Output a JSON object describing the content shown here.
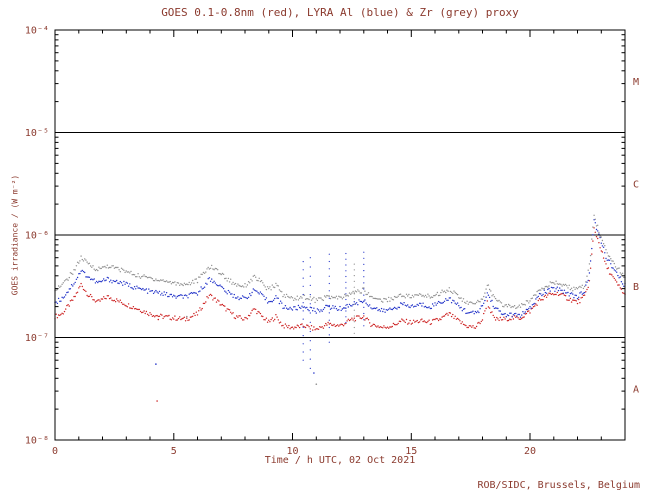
{
  "title": "GOES 0.1-0.8nm (red), LYRA Al (blue) & Zr (grey) proxy",
  "credit": "ROB/SIDC, Brussels, Belgium",
  "colors": {
    "text": "#8b3a2e",
    "axis": "#000000",
    "goes": "#cc2020",
    "al": "#2233c8",
    "zr": "#909090"
  },
  "chart_data": {
    "type": "line",
    "title": "GOES 0.1-0.8nm (red), LYRA Al (blue) & Zr (grey) proxy",
    "xlabel": "Time / h UTC, 02 Oct 2021",
    "ylabel": "GOES irradiance / (W m⁻²)",
    "xlim": [
      0,
      24
    ],
    "ylim": [
      1e-08,
      0.0001
    ],
    "grid": false,
    "x_major_ticks": [
      0,
      5,
      10,
      15,
      20
    ],
    "y_tick_values": [
      0.0001,
      1e-05,
      1e-06,
      1e-07,
      1e-08
    ],
    "y_tick_labels": [
      "10⁻⁴",
      "10⁻⁵",
      "10⁻⁶",
      "10⁻⁷",
      "10⁻⁸"
    ],
    "hlines": [
      1e-05,
      1e-06,
      1e-07
    ],
    "flare_class_labels": [
      {
        "label": "M",
        "y": 3.16e-05
      },
      {
        "label": "C",
        "y": 3.16e-06
      },
      {
        "label": "B",
        "y": 3.16e-07
      },
      {
        "label": "A",
        "y": 3.16e-08
      }
    ],
    "unit_scale": 1e-07,
    "series": [
      {
        "name": "GOES 0.1-0.8nm",
        "color_key": "goes",
        "x": [
          0,
          0.3,
          0.8,
          1.1,
          1.4,
          1.8,
          2.2,
          2.6,
          3,
          3.5,
          4,
          4.5,
          5,
          5.5,
          6,
          6.5,
          6.8,
          7.2,
          7.6,
          8,
          8.4,
          8.6,
          9,
          9.3,
          9.6,
          10,
          10.5,
          11,
          11.5,
          12,
          12.5,
          13,
          13.3,
          13.8,
          14.2,
          14.6,
          15,
          15.4,
          15.8,
          16.2,
          16.6,
          16.9,
          17.3,
          17.7,
          18,
          18.2,
          18.5,
          18.8,
          19.2,
          19.6,
          20,
          20.4,
          20.8,
          21.2,
          21.6,
          22,
          22.3,
          22.5,
          22.7,
          22.9,
          23.2,
          23.6,
          24
        ],
        "values": [
          1.6,
          1.7,
          2.4,
          3.3,
          2.6,
          2.2,
          2.5,
          2.3,
          2.1,
          1.9,
          1.7,
          1.6,
          1.55,
          1.5,
          1.7,
          2.6,
          2.3,
          1.9,
          1.6,
          1.5,
          1.9,
          1.7,
          1.4,
          1.6,
          1.3,
          1.25,
          1.3,
          1.2,
          1.35,
          1.3,
          1.5,
          1.6,
          1.35,
          1.25,
          1.3,
          1.45,
          1.4,
          1.45,
          1.4,
          1.5,
          1.7,
          1.5,
          1.3,
          1.25,
          1.5,
          2.2,
          1.5,
          1.5,
          1.55,
          1.55,
          1.8,
          2.3,
          2.6,
          2.7,
          2.4,
          2.2,
          2.5,
          3.5,
          11.5,
          8.5,
          5.0,
          3.5,
          2.6
        ]
      },
      {
        "name": "LYRA Al proxy",
        "color_key": "al",
        "x": [
          0,
          0.3,
          0.8,
          1.1,
          1.4,
          1.8,
          2.2,
          2.6,
          3,
          3.5,
          4,
          4.5,
          5,
          5.5,
          6,
          6.5,
          6.8,
          7.2,
          7.6,
          8,
          8.4,
          8.6,
          9,
          9.3,
          9.6,
          10,
          10.5,
          11,
          11.5,
          12,
          12.5,
          13,
          13.3,
          13.8,
          14.2,
          14.6,
          15,
          15.4,
          15.8,
          16.2,
          16.6,
          16.9,
          17.3,
          17.7,
          18,
          18.2,
          18.5,
          18.8,
          19.2,
          19.6,
          20,
          20.4,
          20.8,
          21.2,
          21.6,
          22,
          22.3,
          22.5,
          22.7,
          22.9,
          23.2,
          23.6,
          24
        ],
        "values": [
          2.2,
          2.4,
          3.4,
          4.5,
          3.9,
          3.4,
          3.7,
          3.5,
          3.3,
          3.0,
          2.8,
          2.7,
          2.5,
          2.5,
          2.7,
          3.7,
          3.4,
          2.8,
          2.5,
          2.4,
          2.9,
          2.7,
          2.2,
          2.5,
          2.0,
          1.9,
          2.0,
          1.8,
          2.0,
          1.9,
          2.1,
          2.3,
          2.0,
          1.8,
          1.9,
          2.1,
          2.0,
          2.1,
          2.0,
          2.2,
          2.4,
          2.1,
          1.8,
          1.7,
          2.0,
          2.7,
          2.0,
          1.7,
          1.65,
          1.65,
          1.9,
          2.6,
          2.9,
          3.0,
          2.7,
          2.5,
          2.8,
          4.2,
          13.5,
          10.0,
          6.2,
          4.3,
          3.2
        ]
      },
      {
        "name": "LYRA Zr proxy",
        "color_key": "zr",
        "x": [
          0,
          0.3,
          0.8,
          1.1,
          1.4,
          1.8,
          2.2,
          2.6,
          3,
          3.5,
          4,
          4.5,
          5,
          5.5,
          6,
          6.5,
          6.8,
          7.2,
          7.6,
          8,
          8.4,
          8.6,
          9,
          9.3,
          9.6,
          10,
          10.5,
          11,
          11.5,
          12,
          12.5,
          13,
          13.3,
          13.8,
          14.2,
          14.6,
          15,
          15.4,
          15.8,
          16.2,
          16.6,
          16.9,
          17.3,
          17.7,
          18,
          18.2,
          18.5,
          18.8,
          19.2,
          19.6,
          20,
          20.4,
          20.8,
          21.2,
          21.6,
          22,
          22.3,
          22.5,
          22.7,
          22.9,
          23.2,
          23.6,
          24
        ],
        "values": [
          3.0,
          3.2,
          4.5,
          6.0,
          5.2,
          4.6,
          5.0,
          4.7,
          4.4,
          4.0,
          3.8,
          3.6,
          3.4,
          3.3,
          3.6,
          4.9,
          4.6,
          3.8,
          3.3,
          3.2,
          3.9,
          3.6,
          2.9,
          3.3,
          2.6,
          2.4,
          2.5,
          2.3,
          2.5,
          2.4,
          2.7,
          2.9,
          2.5,
          2.3,
          2.4,
          2.6,
          2.5,
          2.6,
          2.5,
          2.7,
          3.0,
          2.6,
          2.2,
          2.1,
          2.4,
          3.3,
          2.4,
          2.1,
          2.0,
          2.0,
          2.3,
          3.0,
          3.3,
          3.4,
          3.1,
          2.9,
          3.2,
          5.0,
          15.0,
          11.0,
          7.0,
          5.0,
          3.8
        ]
      }
    ],
    "spikes": [
      {
        "x": 10.45,
        "y0": 6e-08,
        "y1": 5.5e-07,
        "color_key": "al"
      },
      {
        "x": 10.75,
        "y0": 5e-08,
        "y1": 6e-07,
        "color_key": "al"
      },
      {
        "x": 11.55,
        "y0": 9e-08,
        "y1": 6.5e-07,
        "color_key": "al"
      },
      {
        "x": 12.25,
        "y0": 1.4e-07,
        "y1": 6.6e-07,
        "color_key": "al"
      },
      {
        "x": 12.6,
        "y0": 1.1e-07,
        "y1": 5.2e-07,
        "color_key": "zr"
      },
      {
        "x": 13.0,
        "y0": 1.3e-07,
        "y1": 6.8e-07,
        "color_key": "al"
      }
    ],
    "stray_points": [
      {
        "x": 4.25,
        "y": 5.5e-08,
        "color_key": "al"
      },
      {
        "x": 4.3,
        "y": 2.4e-08,
        "color_key": "goes"
      },
      {
        "x": 4.35,
        "y": 1.5e-07,
        "color_key": "goes"
      },
      {
        "x": 5.55,
        "y": 1.6e-07,
        "color_key": "zr"
      },
      {
        "x": 10.9,
        "y": 4.5e-08,
        "color_key": "al"
      },
      {
        "x": 11.0,
        "y": 3.5e-08,
        "color_key": "zr"
      }
    ]
  }
}
